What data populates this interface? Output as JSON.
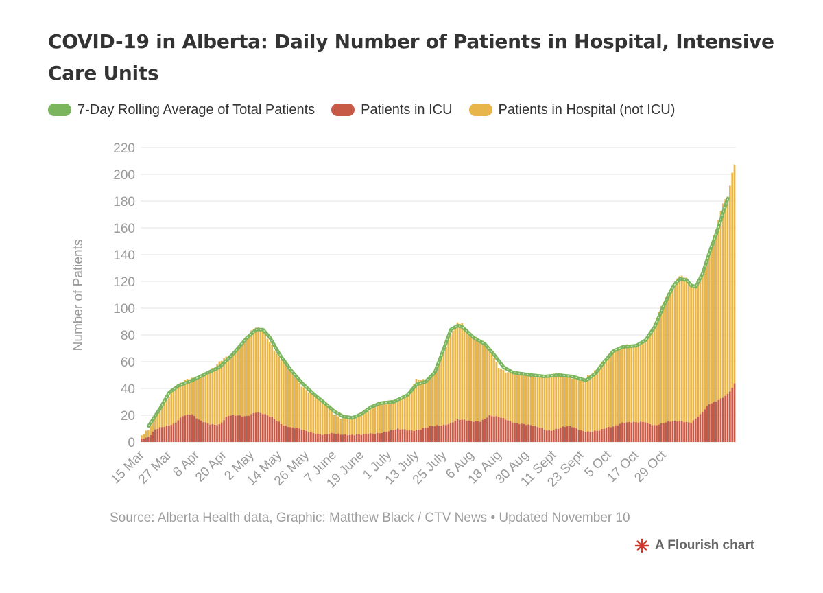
{
  "title": "COVID-19 in Alberta: Daily Number of Patients in Hospital, Intensive Care Units",
  "legend": [
    {
      "label": "7-Day Rolling Average of Total Patients",
      "color": "#7bb65f"
    },
    {
      "label": "Patients in ICU",
      "color": "#c75a46"
    },
    {
      "label": "Patients in Hospital (not ICU)",
      "color": "#e8b54b"
    }
  ],
  "source": "Source: Alberta Health data, Graphic: Matthew Black / CTV News • Updated November 10",
  "credit": "A Flourish chart",
  "colors": {
    "icu": "#c75a46",
    "hospital": "#e8b54b",
    "average": "#7bb65f",
    "grid": "#e6e6e6",
    "tick": "#999999"
  },
  "chart_data": {
    "type": "bar",
    "stacked": true,
    "ylabel": "Number of Patients",
    "ylim": [
      0,
      220
    ],
    "yticks": [
      0,
      20,
      40,
      60,
      80,
      100,
      120,
      140,
      160,
      180,
      200,
      220
    ],
    "x_tick_labels": [
      "15 Mar",
      "27 Mar",
      "8 Apr",
      "20 Apr",
      "2 May",
      "14 May",
      "26 May",
      "7 June",
      "19 June",
      "1 July",
      "13 July",
      "25 July",
      "6 Aug",
      "18 Aug",
      "30 Aug",
      "11 Sept",
      "23 Sept",
      "5 Oct",
      "17 Oct",
      "29 Oct"
    ],
    "days_per_tick": 12,
    "grid": true,
    "legend_position": "top",
    "total_keyframes": [
      [
        0,
        5
      ],
      [
        3,
        8
      ],
      [
        6,
        18
      ],
      [
        10,
        30
      ],
      [
        14,
        40
      ],
      [
        20,
        46
      ],
      [
        27,
        51
      ],
      [
        32,
        55
      ],
      [
        36,
        62
      ],
      [
        42,
        70
      ],
      [
        47,
        80
      ],
      [
        50,
        85
      ],
      [
        53,
        84
      ],
      [
        56,
        76
      ],
      [
        60,
        63
      ],
      [
        65,
        53
      ],
      [
        70,
        43
      ],
      [
        75,
        35
      ],
      [
        80,
        28
      ],
      [
        84,
        22
      ],
      [
        88,
        18
      ],
      [
        92,
        17
      ],
      [
        96,
        20
      ],
      [
        100,
        26
      ],
      [
        104,
        29
      ],
      [
        110,
        30
      ],
      [
        116,
        36
      ],
      [
        120,
        46
      ],
      [
        124,
        45
      ],
      [
        128,
        52
      ],
      [
        132,
        68
      ],
      [
        135,
        80
      ],
      [
        138,
        88
      ],
      [
        140,
        88
      ],
      [
        143,
        82
      ],
      [
        148,
        77
      ],
      [
        152,
        68
      ],
      [
        156,
        56
      ],
      [
        160,
        53
      ],
      [
        164,
        51
      ],
      [
        170,
        49
      ],
      [
        176,
        50
      ],
      [
        182,
        50
      ],
      [
        188,
        49
      ],
      [
        194,
        47
      ],
      [
        198,
        52
      ],
      [
        202,
        62
      ],
      [
        206,
        68
      ],
      [
        210,
        71
      ],
      [
        216,
        72
      ],
      [
        220,
        76
      ],
      [
        224,
        88
      ],
      [
        228,
        104
      ],
      [
        232,
        118
      ],
      [
        234,
        124
      ],
      [
        236,
        125
      ],
      [
        238,
        122
      ],
      [
        240,
        116
      ],
      [
        242,
        115
      ],
      [
        245,
        128
      ],
      [
        248,
        145
      ],
      [
        251,
        160
      ],
      [
        254,
        178
      ],
      [
        256,
        182
      ],
      [
        258,
        200
      ],
      [
        259,
        207
      ]
    ],
    "icu_keyframes": [
      [
        0,
        3
      ],
      [
        3,
        4
      ],
      [
        6,
        9
      ],
      [
        10,
        11
      ],
      [
        14,
        14
      ],
      [
        18,
        20
      ],
      [
        22,
        20
      ],
      [
        25,
        16
      ],
      [
        30,
        14
      ],
      [
        34,
        13
      ],
      [
        38,
        19
      ],
      [
        42,
        20
      ],
      [
        46,
        20
      ],
      [
        50,
        22
      ],
      [
        54,
        20
      ],
      [
        58,
        18
      ],
      [
        62,
        13
      ],
      [
        66,
        10
      ],
      [
        70,
        9
      ],
      [
        76,
        7
      ],
      [
        80,
        5
      ],
      [
        84,
        6
      ],
      [
        90,
        6
      ],
      [
        96,
        5
      ],
      [
        100,
        6
      ],
      [
        106,
        8
      ],
      [
        112,
        9
      ],
      [
        118,
        9
      ],
      [
        122,
        10
      ],
      [
        126,
        11
      ],
      [
        130,
        12
      ],
      [
        134,
        14
      ],
      [
        138,
        17
      ],
      [
        140,
        16
      ],
      [
        144,
        15
      ],
      [
        148,
        16
      ],
      [
        152,
        20
      ],
      [
        156,
        18
      ],
      [
        160,
        16
      ],
      [
        166,
        14
      ],
      [
        172,
        11
      ],
      [
        178,
        9
      ],
      [
        184,
        11
      ],
      [
        188,
        11
      ],
      [
        192,
        9
      ],
      [
        196,
        8
      ],
      [
        200,
        8
      ],
      [
        206,
        12
      ],
      [
        210,
        15
      ],
      [
        216,
        14
      ],
      [
        220,
        15
      ],
      [
        224,
        13
      ],
      [
        228,
        14
      ],
      [
        232,
        15
      ],
      [
        236,
        16
      ],
      [
        240,
        15
      ],
      [
        244,
        20
      ],
      [
        248,
        28
      ],
      [
        252,
        32
      ],
      [
        256,
        36
      ],
      [
        258,
        40
      ],
      [
        259,
        43
      ]
    ],
    "avg_keyframes": [
      [
        3,
        12
      ],
      [
        8,
        25
      ],
      [
        12,
        37
      ],
      [
        16,
        42
      ],
      [
        22,
        46
      ],
      [
        28,
        51
      ],
      [
        34,
        56
      ],
      [
        40,
        66
      ],
      [
        46,
        78
      ],
      [
        50,
        84
      ],
      [
        53,
        84
      ],
      [
        56,
        78
      ],
      [
        60,
        66
      ],
      [
        65,
        54
      ],
      [
        70,
        44
      ],
      [
        75,
        36
      ],
      [
        80,
        29
      ],
      [
        84,
        23
      ],
      [
        88,
        19
      ],
      [
        92,
        18
      ],
      [
        96,
        21
      ],
      [
        100,
        26
      ],
      [
        104,
        29
      ],
      [
        110,
        30
      ],
      [
        116,
        35
      ],
      [
        120,
        43
      ],
      [
        124,
        45
      ],
      [
        128,
        52
      ],
      [
        132,
        70
      ],
      [
        135,
        84
      ],
      [
        138,
        87
      ],
      [
        140,
        86
      ],
      [
        145,
        78
      ],
      [
        150,
        73
      ],
      [
        154,
        65
      ],
      [
        158,
        56
      ],
      [
        162,
        52
      ],
      [
        170,
        50
      ],
      [
        176,
        49
      ],
      [
        182,
        50
      ],
      [
        188,
        49
      ],
      [
        194,
        46
      ],
      [
        198,
        51
      ],
      [
        202,
        60
      ],
      [
        206,
        68
      ],
      [
        210,
        71
      ],
      [
        216,
        72
      ],
      [
        220,
        76
      ],
      [
        224,
        86
      ],
      [
        228,
        102
      ],
      [
        232,
        116
      ],
      [
        235,
        122
      ],
      [
        238,
        121
      ],
      [
        240,
        117
      ],
      [
        242,
        116
      ],
      [
        245,
        126
      ],
      [
        248,
        142
      ],
      [
        251,
        156
      ],
      [
        254,
        172
      ],
      [
        256,
        182
      ]
    ]
  }
}
